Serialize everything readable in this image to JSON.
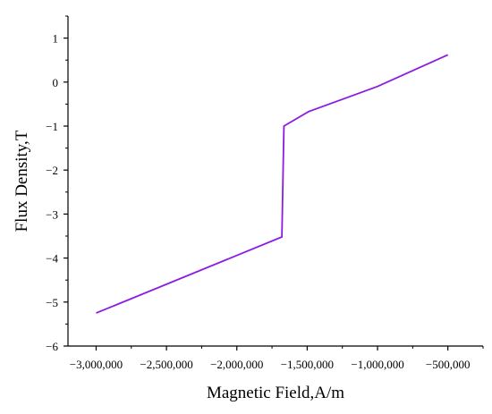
{
  "chart_data": {
    "type": "line",
    "title": "",
    "xlabel": "Magnetic Field,A/m",
    "ylabel": "Flux Density,T",
    "xlim": [
      -3200000,
      -250000
    ],
    "ylim": [
      -6,
      1.5
    ],
    "x_ticks": [
      -3000000,
      -2500000,
      -2000000,
      -1500000,
      -1000000,
      -500000
    ],
    "x_tick_labels": [
      "−3,000,000",
      "−2,500,000",
      "−2,000,000",
      "−1,500,000",
      "−1,000,000",
      "−500,000"
    ],
    "y_ticks": [
      1,
      0,
      -1,
      -2,
      -3,
      -4,
      -5,
      -6
    ],
    "y_tick_labels": [
      "1",
      "0",
      "−1",
      "−2",
      "−3",
      "−4",
      "−5",
      "−6"
    ],
    "grid": false,
    "legend": "none",
    "series": [
      {
        "color": "#8B1CE0",
        "x": [
          -3000000,
          -1680000,
          -1665000,
          -1490000,
          -1000000,
          -500000
        ],
        "y": [
          -5.25,
          -3.52,
          -1.0,
          -0.67,
          -0.1,
          0.62
        ]
      }
    ]
  }
}
